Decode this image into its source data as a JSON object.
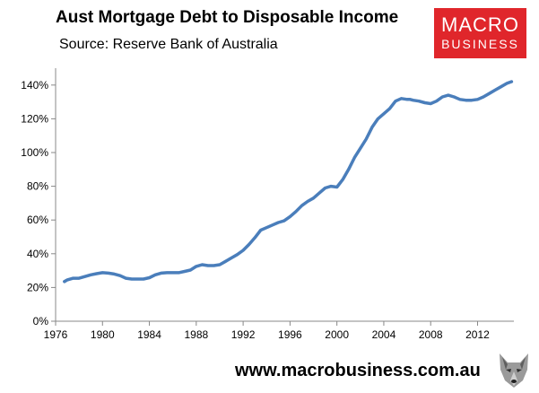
{
  "header": {
    "title": "Aust Mortgage Debt to Disposable Income",
    "source": "Source: Reserve Bank of Australia"
  },
  "logo": {
    "line1": "MACRO",
    "line2": "BUSINESS",
    "color": "#e0262b"
  },
  "footer": {
    "url": "www.macrobusiness.com.au",
    "mascot_icon": "wolf-icon"
  },
  "chart_data": {
    "type": "line",
    "title": "Aust Mortgage Debt to Disposable Income",
    "subtitle": "Source: Reserve Bank of Australia",
    "xlabel": "",
    "ylabel": "",
    "xlim": [
      1976,
      2015.1
    ],
    "ylim": [
      0,
      150
    ],
    "x_ticks": [
      1976,
      1980,
      1984,
      1988,
      1992,
      1996,
      2000,
      2004,
      2008,
      2012
    ],
    "y_ticks": [
      0,
      20,
      40,
      60,
      80,
      100,
      120,
      140
    ],
    "y_tick_labels": [
      "0%",
      "20%",
      "40%",
      "60%",
      "80%",
      "100%",
      "120%",
      "140%"
    ],
    "grid": false,
    "legend": "none",
    "line_color": "#4a7ebb",
    "series": [
      {
        "x": [
          1976.75,
          1977,
          1977.5,
          1978,
          1978.5,
          1979,
          1979.5,
          1980,
          1980.5,
          1981,
          1981.5,
          1982,
          1982.5,
          1983,
          1983.5,
          1984,
          1984.5,
          1985,
          1985.5,
          1986,
          1986.5,
          1987,
          1987.5,
          1988,
          1988.5,
          1989,
          1989.5,
          1990,
          1990.5,
          1991,
          1991.5,
          1992,
          1992.5,
          1993,
          1993.5,
          1994,
          1994.5,
          1995,
          1995.5,
          1996,
          1996.5,
          1997,
          1997.5,
          1998,
          1998.5,
          1999,
          1999.5,
          2000,
          2000.5,
          2001,
          2001.5,
          2002,
          2002.5,
          2003,
          2003.5,
          2004,
          2004.5,
          2005,
          2005.5,
          2006,
          2006.25,
          2006.5,
          2007,
          2007.5,
          2008,
          2008.5,
          2009,
          2009.5,
          2010,
          2010.5,
          2011,
          2011.5,
          2012,
          2012.5,
          2013,
          2013.5,
          2014,
          2014.5,
          2014.9
        ],
        "values": [
          23.5,
          24.5,
          25.5,
          25.5,
          26.5,
          27.5,
          28.2,
          28.8,
          28.5,
          28.0,
          27.0,
          25.5,
          25.0,
          25.0,
          25.0,
          25.8,
          27.5,
          28.5,
          28.8,
          28.8,
          28.8,
          29.5,
          30.3,
          32.5,
          33.5,
          33.0,
          33.0,
          33.5,
          35.5,
          37.5,
          39.5,
          42.0,
          45.5,
          49.5,
          54.0,
          55.5,
          57.0,
          58.5,
          59.5,
          62.0,
          65.0,
          68.5,
          71.0,
          73.0,
          76.0,
          79.0,
          80.0,
          79.5,
          84.0,
          90.0,
          97.0,
          102.5,
          108.0,
          115.0,
          120.0,
          123.0,
          126.0,
          130.5,
          132.0,
          131.5,
          131.5,
          131.0,
          130.5,
          129.5,
          129.0,
          130.5,
          133.0,
          134.0,
          133.0,
          131.5,
          131.0,
          131.0,
          131.5,
          133.0,
          135.0,
          137.0,
          139.0,
          141.0,
          142.0
        ]
      }
    ]
  }
}
